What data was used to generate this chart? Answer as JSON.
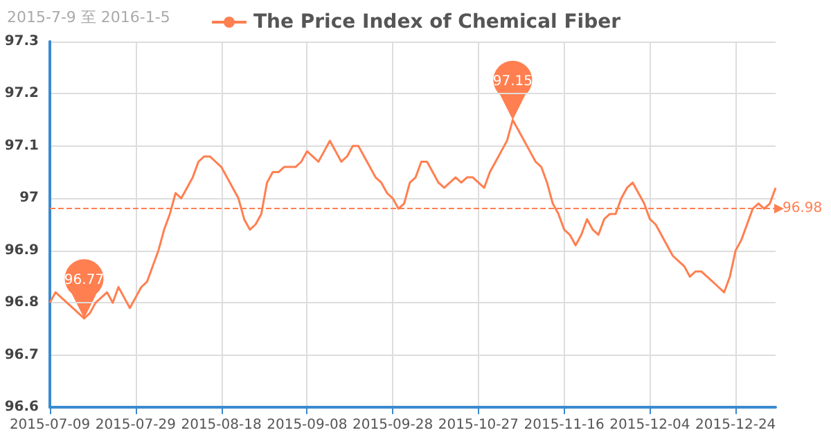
{
  "chart_data": {
    "type": "line",
    "title": "2015-7-9 至 2016-1-5",
    "categories": [
      "2015-07-09",
      null,
      null,
      null,
      null,
      null,
      null,
      null,
      null,
      null,
      null,
      null,
      null,
      null,
      null,
      "2015-07-29",
      null,
      null,
      null,
      null,
      null,
      null,
      null,
      null,
      null,
      null,
      null,
      null,
      null,
      null,
      "2015-08-18",
      null,
      null,
      null,
      null,
      null,
      null,
      null,
      null,
      null,
      null,
      null,
      null,
      null,
      null,
      "2015-09-08",
      null,
      null,
      null,
      null,
      null,
      null,
      null,
      null,
      null,
      null,
      null,
      null,
      null,
      null,
      "2015-09-28",
      null,
      null,
      null,
      null,
      null,
      null,
      null,
      null,
      null,
      null,
      null,
      null,
      null,
      null,
      "2015-10-27",
      null,
      null,
      null,
      null,
      null,
      null,
      null,
      null,
      null,
      null,
      null,
      null,
      null,
      null,
      "2015-11-16",
      null,
      null,
      null,
      null,
      null,
      null,
      null,
      null,
      null,
      null,
      null,
      null,
      null,
      null,
      "2015-12-04",
      null,
      null,
      null,
      null,
      null,
      null,
      null,
      null,
      null,
      null,
      null,
      null,
      null,
      null,
      "2015-12-24",
      null,
      null,
      null,
      null,
      null,
      null,
      null
    ],
    "series": [
      {
        "name": "The Price Index of Chemical Fiber",
        "color": "#ff7f50",
        "values": [
          96.8,
          96.82,
          96.81,
          96.8,
          96.79,
          96.78,
          96.77,
          96.78,
          96.8,
          96.81,
          96.82,
          96.8,
          96.83,
          96.81,
          96.79,
          96.81,
          96.83,
          96.84,
          96.87,
          96.9,
          96.94,
          96.97,
          97.01,
          97.0,
          97.02,
          97.04,
          97.07,
          97.08,
          97.08,
          97.07,
          97.06,
          97.04,
          97.02,
          97.0,
          96.96,
          96.94,
          96.95,
          96.97,
          97.03,
          97.05,
          97.05,
          97.06,
          97.06,
          97.06,
          97.07,
          97.09,
          97.08,
          97.07,
          97.09,
          97.11,
          97.09,
          97.07,
          97.08,
          97.1,
          97.1,
          97.08,
          97.06,
          97.04,
          97.03,
          97.01,
          97.0,
          96.98,
          96.99,
          97.03,
          97.04,
          97.07,
          97.07,
          97.05,
          97.03,
          97.02,
          97.03,
          97.04,
          97.03,
          97.04,
          97.04,
          97.03,
          97.02,
          97.05,
          97.07,
          97.09,
          97.11,
          97.15,
          97.13,
          97.11,
          97.09,
          97.07,
          97.06,
          97.03,
          96.99,
          96.97,
          96.94,
          96.93,
          96.91,
          96.93,
          96.96,
          96.94,
          96.93,
          96.96,
          96.97,
          96.97,
          97.0,
          97.02,
          97.03,
          97.01,
          96.99,
          96.96,
          96.95,
          96.93,
          96.91,
          96.89,
          96.88,
          96.87,
          96.85,
          96.86,
          96.86,
          96.85,
          96.84,
          96.83,
          96.82,
          96.85,
          96.9,
          96.92,
          96.95,
          96.98,
          96.99,
          96.98,
          96.99,
          97.02
        ]
      }
    ],
    "ylim": [
      96.6,
      97.3
    ],
    "yticks": [
      96.6,
      96.7,
      96.8,
      96.9,
      97.0,
      97.1,
      97.2,
      97.3
    ],
    "ref_lines": [
      {
        "axis": "y",
        "value": 96.98,
        "label": "96.98",
        "color": "#ff7f50",
        "line_style": "dashed"
      }
    ],
    "annotations": [
      {
        "text": "97.15",
        "y": 97.15
      },
      {
        "text": "96.77",
        "y": 96.77
      }
    ],
    "grid": true,
    "legend": "top",
    "marker": "none",
    "line_style": "solid"
  }
}
